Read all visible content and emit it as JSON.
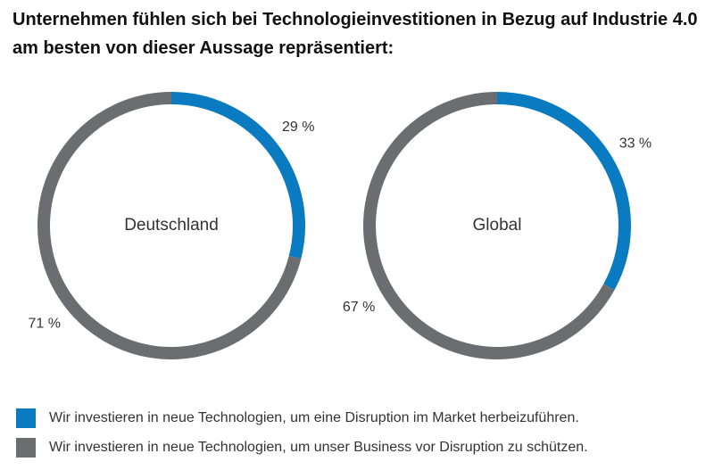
{
  "chart_data": {
    "type": "pie",
    "title": "Unternehmen fühlen sich bei Technologieinvestitionen in Bezug auf Industrie 4.0 am besten von dieser Aussage repräsentiert:",
    "categories": [
      "Wir investieren in neue Technologien, um eine Disruption im Market herbeizuführen.",
      "Wir investieren in neue Technologien, um unser Business vor Disruption zu schützen."
    ],
    "colors": [
      "#0a7bc1",
      "#6b6d71"
    ],
    "donut": true,
    "series": [
      {
        "name": "Deutschland",
        "values": [
          29,
          71
        ],
        "value_labels": [
          "29 %",
          "71 %"
        ]
      },
      {
        "name": "Global",
        "values": [
          33,
          67
        ],
        "value_labels": [
          "33 %",
          "67 %"
        ]
      }
    ]
  }
}
